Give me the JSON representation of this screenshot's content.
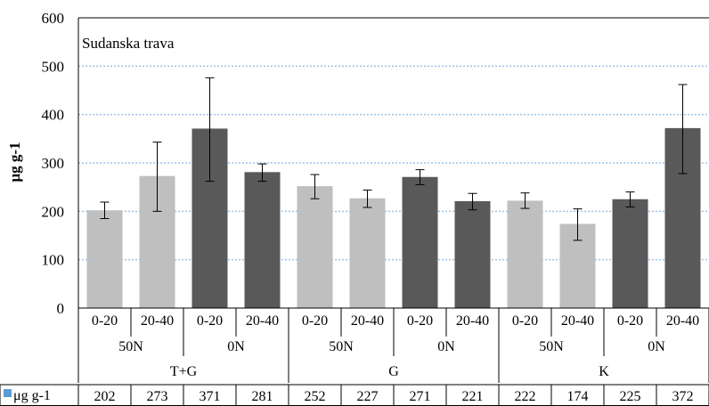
{
  "chart_data": {
    "type": "bar",
    "annotation": "Sudanska trava",
    "ylabel": "μg g-1",
    "ylim": [
      0,
      600
    ],
    "yticks": [
      0,
      100,
      200,
      300,
      400,
      500,
      600
    ],
    "grid": true,
    "categories": [
      {
        "depth": "0-20",
        "n": "50N",
        "site": "T+G"
      },
      {
        "depth": "20-40",
        "n": "50N",
        "site": "T+G"
      },
      {
        "depth": "0-20",
        "n": "0N",
        "site": "T+G"
      },
      {
        "depth": "20-40",
        "n": "0N",
        "site": "T+G"
      },
      {
        "depth": "0-20",
        "n": "50N",
        "site": "G"
      },
      {
        "depth": "20-40",
        "n": "50N",
        "site": "G"
      },
      {
        "depth": "0-20",
        "n": "0N",
        "site": "G"
      },
      {
        "depth": "20-40",
        "n": "0N",
        "site": "G"
      },
      {
        "depth": "0-20",
        "n": "50N",
        "site": "K"
      },
      {
        "depth": "20-40",
        "n": "50N",
        "site": "K"
      },
      {
        "depth": "0-20",
        "n": "0N",
        "site": "K"
      },
      {
        "depth": "20-40",
        "n": "0N",
        "site": "K"
      }
    ],
    "n_groups": [
      {
        "label": "50N",
        "site": "T+G"
      },
      {
        "label": "0N",
        "site": "T+G"
      },
      {
        "label": "50N",
        "site": "G"
      },
      {
        "label": "0N",
        "site": "G"
      },
      {
        "label": "50N",
        "site": "K"
      },
      {
        "label": "0N",
        "site": "K"
      }
    ],
    "sites": [
      "T+G",
      "G",
      "K"
    ],
    "series": [
      {
        "name": "μg g-1",
        "values": [
          202,
          273,
          371,
          281,
          252,
          227,
          271,
          221,
          222,
          174,
          225,
          372
        ],
        "error_low": [
          185,
          200,
          262,
          262,
          226,
          208,
          255,
          203,
          206,
          140,
          209,
          278
        ],
        "error_high": [
          219,
          343,
          476,
          298,
          276,
          244,
          286,
          237,
          238,
          205,
          240,
          462
        ]
      }
    ],
    "colors": {
      "50N": "#bfbfbf",
      "0N": "#595959",
      "legend_swatch": "#5b9bd5",
      "grid": "#9dc3e6"
    }
  }
}
